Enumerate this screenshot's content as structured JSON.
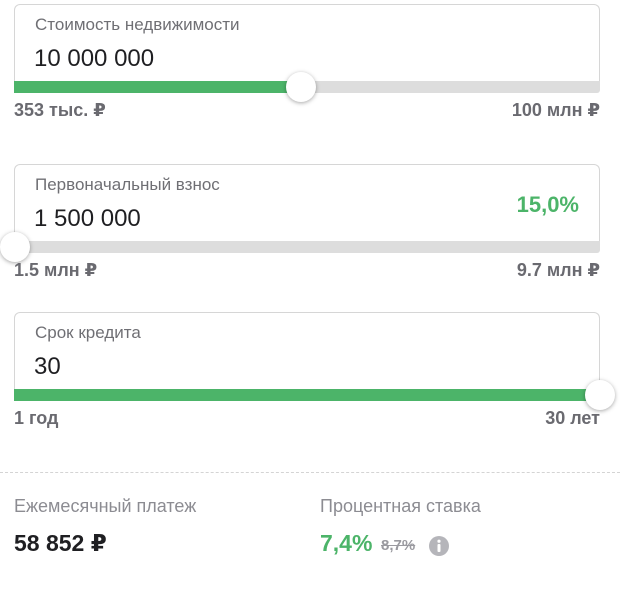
{
  "property_cost": {
    "label": "Стоимость недвижимости",
    "value": "10 000 000",
    "min_label": "353 тыс. ₽",
    "max_label": "100 млн ₽",
    "slider_level": 0.49
  },
  "down_payment": {
    "label": "Первоначальный взнос",
    "value": "1 500 000",
    "percent": "15,0%",
    "min_label": "1.5 млн ₽",
    "max_label": "9.7 млн ₽",
    "slider_level": 0.0
  },
  "loan_term": {
    "label": "Срок кредита",
    "value": "30",
    "min_label": "1 год",
    "max_label": "30 лет",
    "slider_level": 1.0
  },
  "summary": {
    "monthly_payment_label": "Ежемесячный платеж",
    "monthly_payment_value": "58 852 ₽",
    "rate_label": "Процентная ставка",
    "rate_current": "7,4%",
    "rate_old": "8,7%"
  },
  "colors": {
    "accent": "#4cb469",
    "track": "#dddddd"
  },
  "icons": {
    "info": "info-icon"
  }
}
